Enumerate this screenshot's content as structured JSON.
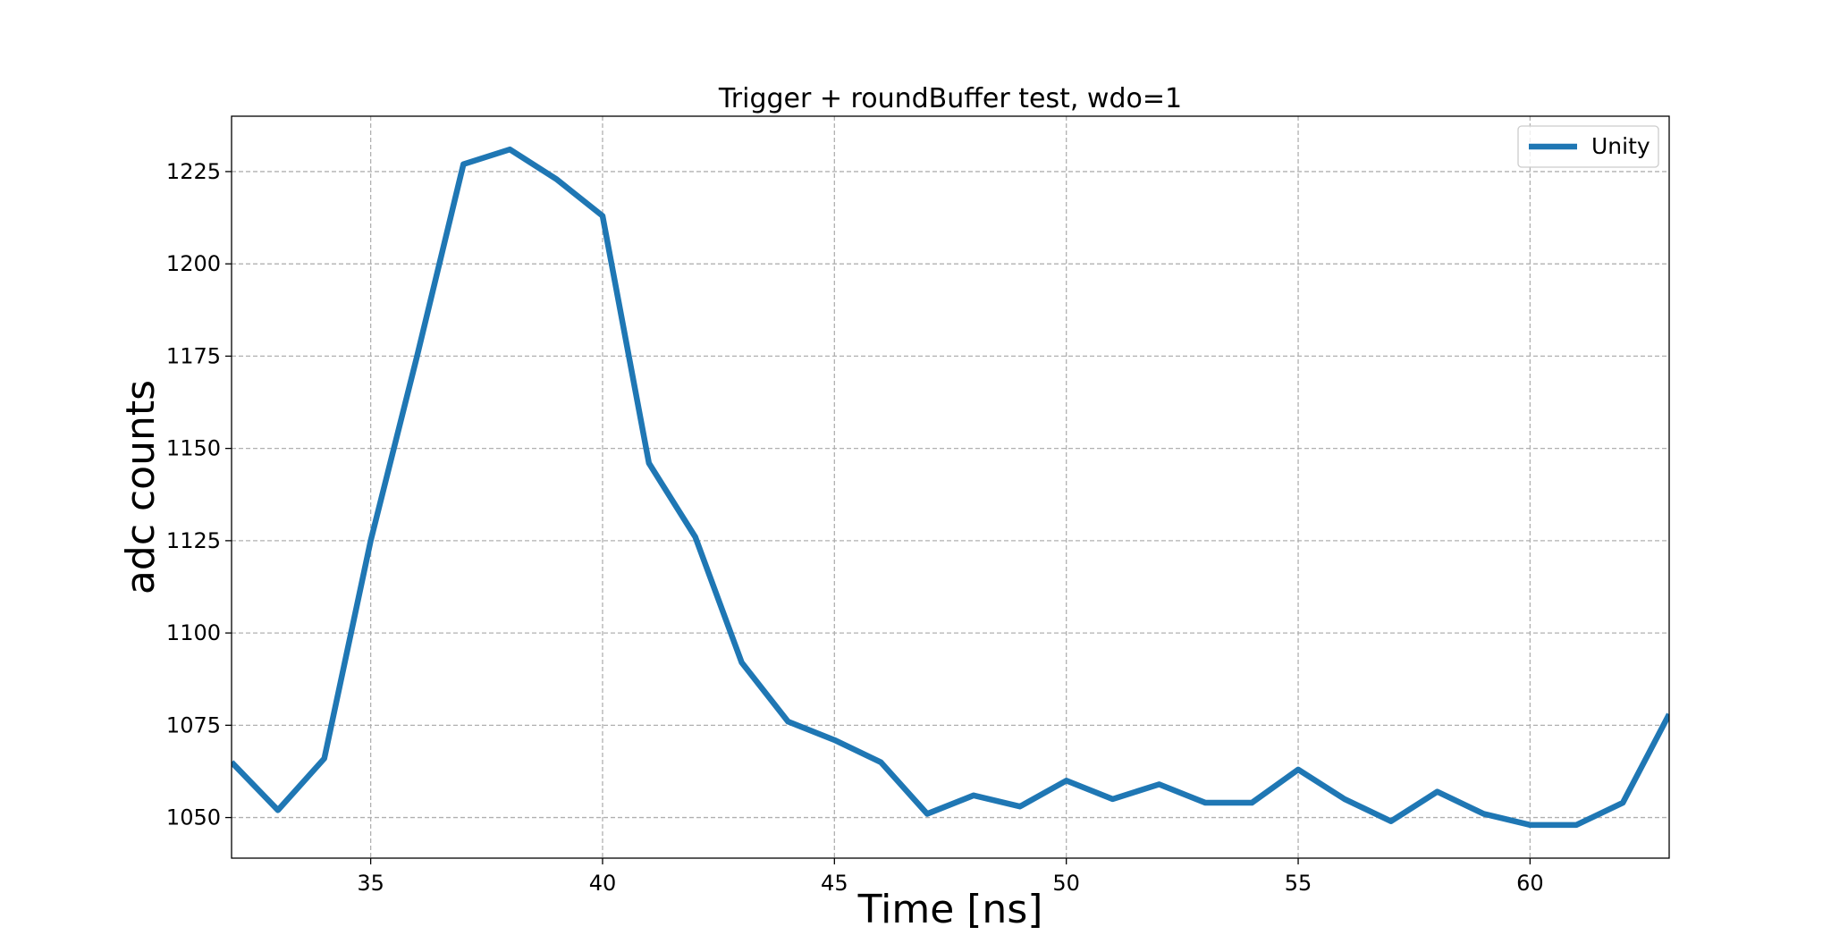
{
  "chart_data": {
    "type": "line",
    "title": "Trigger + roundBuffer test, wdo=1",
    "xlabel": "Time [ns]",
    "ylabel": "adc counts",
    "xlim": [
      32,
      63
    ],
    "ylim": [
      1039,
      1240
    ],
    "xticks": [
      35,
      40,
      45,
      50,
      55,
      60
    ],
    "yticks": [
      1050,
      1075,
      1100,
      1125,
      1150,
      1175,
      1200,
      1225
    ],
    "grid": true,
    "legend_position": "top-right",
    "series": [
      {
        "name": "Unity",
        "color": "#1f77b4",
        "x": [
          32,
          33,
          34,
          35,
          36,
          37,
          38,
          39,
          40,
          41,
          42,
          43,
          44,
          45,
          46,
          47,
          48,
          49,
          50,
          51,
          52,
          53,
          54,
          55,
          56,
          57,
          58,
          59,
          60,
          61,
          62,
          63
        ],
        "y": [
          1065,
          1052,
          1066,
          1125,
          1175,
          1227,
          1231,
          1223,
          1213,
          1146,
          1126,
          1092,
          1076,
          1071,
          1065,
          1051,
          1056,
          1053,
          1060,
          1055,
          1059,
          1054,
          1054,
          1063,
          1055,
          1049,
          1057,
          1051,
          1048,
          1048,
          1054,
          1078
        ]
      }
    ]
  }
}
